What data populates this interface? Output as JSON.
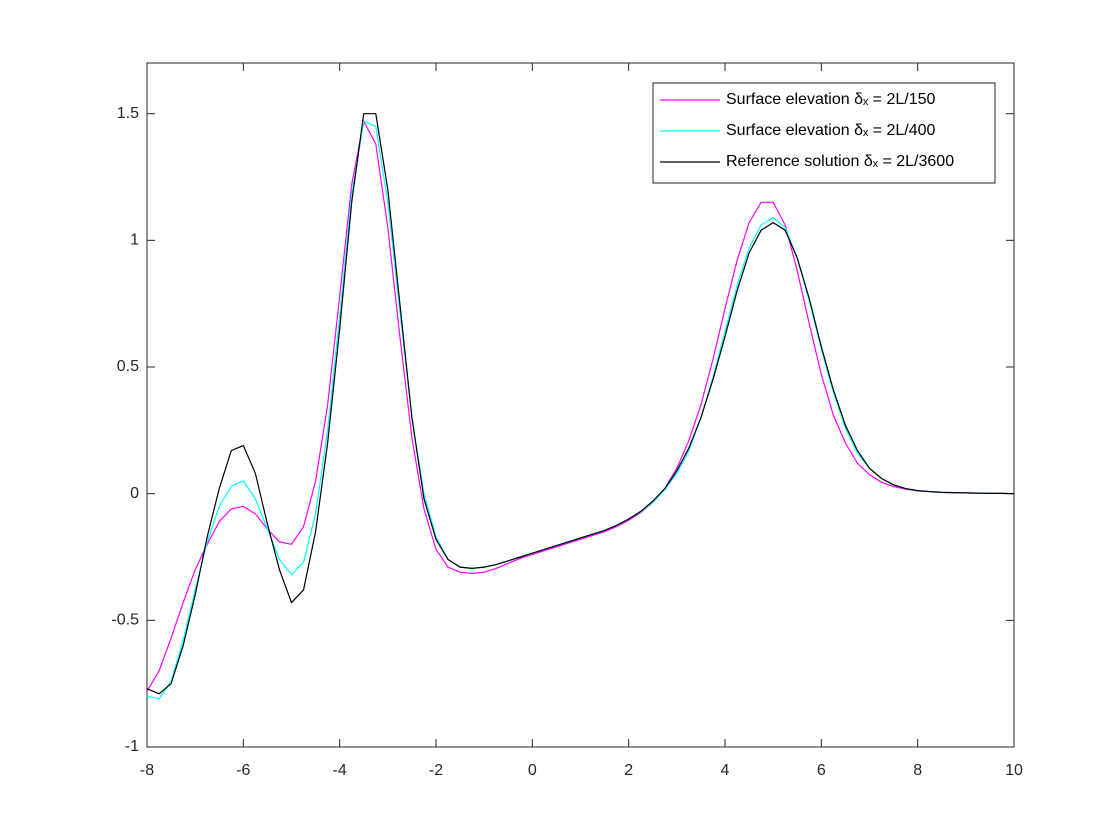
{
  "chart_data": {
    "type": "line",
    "x": [
      -8,
      -7.75,
      -7.5,
      -7.25,
      -7,
      -6.75,
      -6.5,
      -6.25,
      -6,
      -5.75,
      -5.5,
      -5.25,
      -5,
      -4.75,
      -4.5,
      -4.25,
      -4,
      -3.75,
      -3.5,
      -3.25,
      -3,
      -2.75,
      -2.5,
      -2.25,
      -2,
      -1.75,
      -1.5,
      -1.25,
      -1,
      -0.75,
      -0.5,
      -0.25,
      0,
      0.25,
      0.5,
      0.75,
      1,
      1.25,
      1.5,
      1.75,
      2,
      2.25,
      2.5,
      2.75,
      3,
      3.25,
      3.5,
      3.75,
      4,
      4.25,
      4.5,
      4.75,
      5,
      5.25,
      5.5,
      5.75,
      6,
      6.25,
      6.5,
      6.75,
      7,
      7.25,
      7.5,
      7.75,
      8,
      8.25,
      8.5,
      8.75,
      9,
      9.25,
      9.5,
      9.75,
      10
    ],
    "series": [
      {
        "name": "Surface elevation δₓ = 2L/150",
        "color": "#ff00ff",
        "values": [
          -0.78,
          -0.7,
          -0.57,
          -0.43,
          -0.3,
          -0.2,
          -0.11,
          -0.06,
          -0.05,
          -0.08,
          -0.14,
          -0.19,
          -0.2,
          -0.13,
          0.05,
          0.35,
          0.78,
          1.22,
          1.47,
          1.38,
          1.05,
          0.62,
          0.22,
          -0.06,
          -0.22,
          -0.29,
          -0.31,
          -0.315,
          -0.31,
          -0.295,
          -0.275,
          -0.255,
          -0.24,
          -0.225,
          -0.21,
          -0.195,
          -0.18,
          -0.165,
          -0.15,
          -0.13,
          -0.105,
          -0.075,
          -0.035,
          0.02,
          0.1,
          0.21,
          0.35,
          0.53,
          0.73,
          0.92,
          1.07,
          1.15,
          1.15,
          1.06,
          0.88,
          0.67,
          0.47,
          0.31,
          0.2,
          0.12,
          0.075,
          0.045,
          0.028,
          0.018,
          0.011,
          0.008,
          0.005,
          0.004,
          0.003,
          0.002,
          0.001,
          0.001,
          0
        ]
      },
      {
        "name": "Surface elevation δₓ = 2L/400",
        "color": "#00ffff",
        "values": [
          -0.8,
          -0.81,
          -0.74,
          -0.58,
          -0.38,
          -0.19,
          -0.05,
          0.03,
          0.05,
          -0.02,
          -0.14,
          -0.26,
          -0.32,
          -0.27,
          -0.08,
          0.25,
          0.7,
          1.18,
          1.47,
          1.45,
          1.15,
          0.72,
          0.3,
          0,
          -0.17,
          -0.26,
          -0.29,
          -0.295,
          -0.29,
          -0.28,
          -0.265,
          -0.25,
          -0.235,
          -0.22,
          -0.205,
          -0.19,
          -0.175,
          -0.16,
          -0.145,
          -0.125,
          -0.1,
          -0.072,
          -0.035,
          0.015,
          0.08,
          0.17,
          0.3,
          0.46,
          0.64,
          0.82,
          0.97,
          1.06,
          1.09,
          1.05,
          0.93,
          0.76,
          0.57,
          0.4,
          0.26,
          0.16,
          0.1,
          0.06,
          0.035,
          0.02,
          0.012,
          0.008,
          0.005,
          0.004,
          0.003,
          0.002,
          0.001,
          0.001,
          0
        ]
      },
      {
        "name": "Reference solution δₓ = 2L/3600",
        "color": "#000000",
        "values": [
          -0.77,
          -0.79,
          -0.75,
          -0.6,
          -0.4,
          -0.17,
          0.02,
          0.17,
          0.19,
          0.08,
          -0.12,
          -0.3,
          -0.43,
          -0.38,
          -0.15,
          0.2,
          0.65,
          1.15,
          1.5,
          1.5,
          1.2,
          0.75,
          0.3,
          -0.02,
          -0.18,
          -0.26,
          -0.29,
          -0.295,
          -0.29,
          -0.28,
          -0.265,
          -0.25,
          -0.235,
          -0.22,
          -0.205,
          -0.19,
          -0.175,
          -0.16,
          -0.145,
          -0.125,
          -0.1,
          -0.07,
          -0.03,
          0.02,
          0.09,
          0.18,
          0.3,
          0.45,
          0.62,
          0.8,
          0.95,
          1.04,
          1.07,
          1.04,
          0.93,
          0.77,
          0.58,
          0.41,
          0.27,
          0.17,
          0.1,
          0.06,
          0.035,
          0.02,
          0.012,
          0.008,
          0.005,
          0.004,
          0.003,
          0.002,
          0.001,
          0.001,
          0
        ]
      }
    ],
    "xlim": [
      -8,
      10
    ],
    "xticks": [
      -8,
      -6,
      -4,
      -2,
      0,
      2,
      4,
      6,
      8,
      10
    ],
    "ylim": [
      -1,
      1.7
    ],
    "yticks": [
      -1,
      -0.5,
      0,
      0.5,
      1,
      1.5
    ],
    "grid": false,
    "legend": "northeast"
  }
}
